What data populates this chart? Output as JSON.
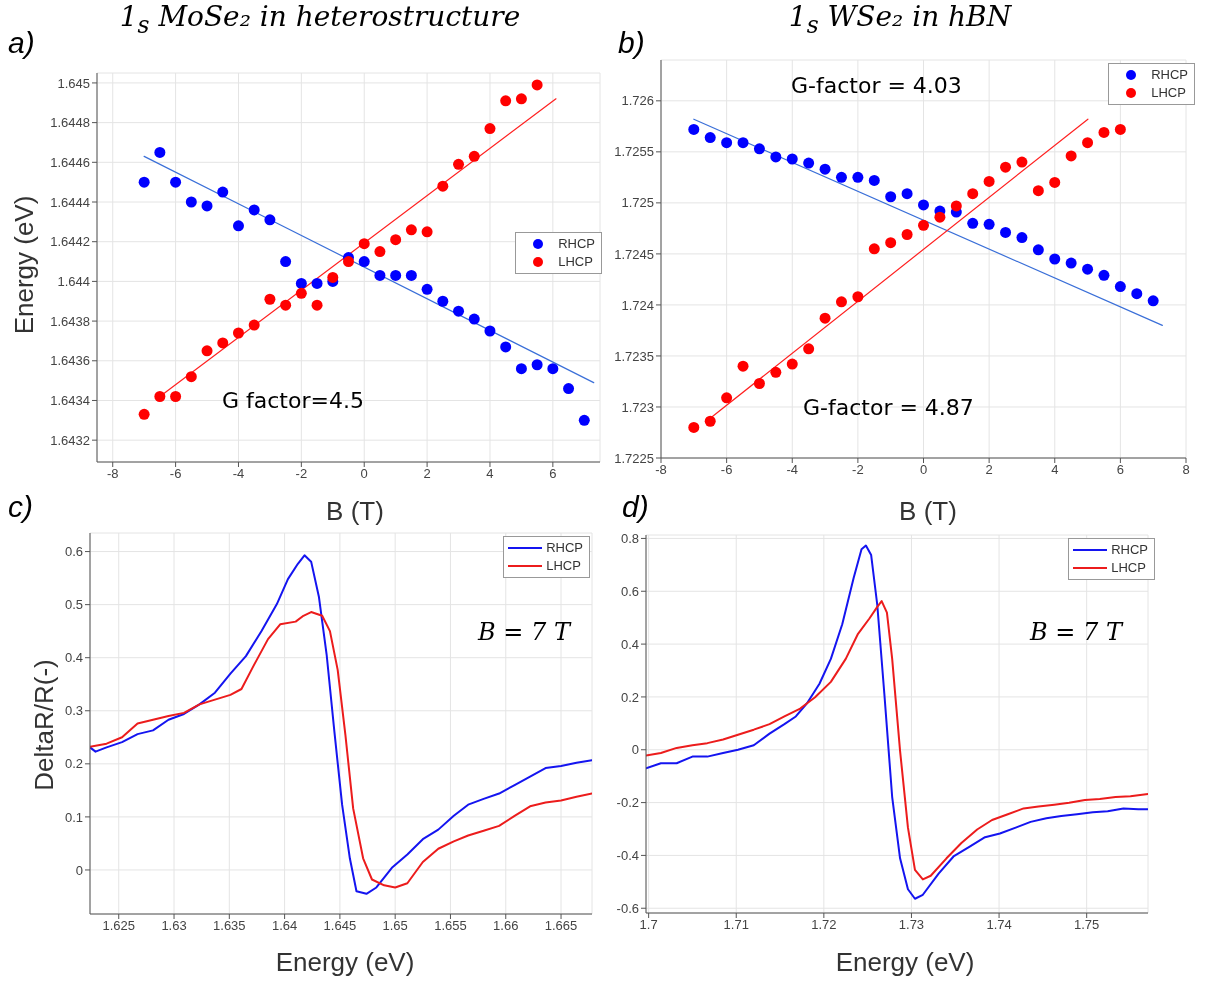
{
  "chart_data": [
    {
      "type": "scatter",
      "title": "1$_{s}$ MoSe₂ in heterostructure",
      "xlabel": "B (T)",
      "ylabel": "Energy (eV)",
      "annotations": [
        "a)",
        "G factor=4.5"
      ],
      "xlim": [
        -8.5,
        7.5
      ],
      "xticks": [
        -8,
        -6,
        -4,
        -2,
        0,
        2,
        4,
        6
      ],
      "ylim": [
        1.64309,
        1.64505
      ],
      "yticks": [
        1.6432,
        1.6434,
        1.6436,
        1.6438,
        1.644,
        1.6442,
        1.6444,
        1.6446,
        1.6448,
        1.645
      ],
      "grid": true,
      "legend": "right",
      "marker": "circle",
      "x": [
        -7,
        -6.5,
        -6,
        -5.5,
        -5,
        -4.5,
        -4,
        -3.5,
        -3,
        -2.5,
        -2,
        -1.5,
        -1,
        -0.5,
        0,
        0.5,
        1,
        1.5,
        2,
        2.5,
        3,
        3.5,
        4,
        4.5,
        5,
        5.5,
        6,
        6.5,
        7
      ],
      "series": [
        {
          "name": "RHCP",
          "color": "#0000ff",
          "values": [
            1.6445,
            1.64465,
            1.6445,
            1.6444,
            1.64438,
            1.64445,
            1.64428,
            1.64436,
            1.64431,
            1.6441,
            1.64399,
            1.64399,
            1.644,
            1.64412,
            1.6441,
            1.64403,
            1.64403,
            1.64403,
            1.64396,
            1.6439,
            1.64385,
            1.64381,
            1.64375,
            1.64367,
            1.64356,
            1.64358,
            1.64356,
            1.64346,
            1.6433
          ]
        },
        {
          "name": "LHCP",
          "color": "#ff0000",
          "x": [
            -7,
            -6.5,
            -6,
            -5.5,
            -5,
            -4.5,
            -4,
            -3.5,
            -3,
            -2.5,
            -2,
            -1.5,
            -1,
            -0.5,
            0,
            0.5,
            1,
            1.5,
            2,
            2.5,
            3,
            3.5,
            4,
            4.5,
            5,
            5.5
          ],
          "values": [
            1.64333,
            1.64342,
            1.64342,
            1.64352,
            1.64365,
            1.64369,
            1.64374,
            1.64378,
            1.64391,
            1.64388,
            1.64394,
            1.64388,
            1.64402,
            1.6441,
            1.64419,
            1.64415,
            1.64421,
            1.64426,
            1.64425,
            1.64448,
            1.64459,
            1.64463,
            1.64477,
            1.64491,
            1.64492,
            1.64499
          ]
        },
        {
          "type": "line",
          "marker": "none",
          "color": "#3a6fd8",
          "x": [
            -7,
            7.3
          ],
          "values": [
            1.64463,
            1.64349
          ]
        },
        {
          "type": "line",
          "marker": "none",
          "color": "#ff2020",
          "x": [
            -6.5,
            6.1
          ],
          "values": [
            1.64342,
            1.64492
          ]
        }
      ]
    },
    {
      "type": "scatter",
      "title": "1$_{s}$ WSe₂ in hBN",
      "xlabel": "B (T)",
      "annotations": [
        "b)",
        "G-factor = 4.03",
        "G-factor = 4.87"
      ],
      "xlim": [
        -8,
        8
      ],
      "xticks": [
        -8,
        -6,
        -4,
        -2,
        0,
        2,
        4,
        6,
        8
      ],
      "ylim": [
        1.7225,
        1.7264
      ],
      "yticks": [
        1.7225,
        1.723,
        1.7235,
        1.724,
        1.7245,
        1.725,
        1.7255,
        1.726
      ],
      "grid": true,
      "legend": "top right",
      "marker": "circle",
      "x": [
        -7,
        -6.5,
        -6,
        -5.5,
        -5,
        -4.5,
        -4,
        -3.5,
        -3,
        -2.5,
        -2,
        -1.5,
        -1,
        -0.5,
        0,
        0.5,
        1,
        1.5,
        2,
        2.5,
        3,
        3.5,
        4,
        4.5,
        5,
        5.5,
        6,
        6.5,
        7
      ],
      "series": [
        {
          "name": "RHCP",
          "color": "#0000ff",
          "values": [
            1.72572,
            1.72564,
            1.72559,
            1.72559,
            1.72553,
            1.72545,
            1.72543,
            1.72539,
            1.72533,
            1.72525,
            1.72525,
            1.72522,
            1.72506,
            1.72509,
            1.72498,
            1.72492,
            1.72491,
            1.7248,
            1.72479,
            1.72471,
            1.72466,
            1.72454,
            1.72445,
            1.72441,
            1.72435,
            1.72429,
            1.72418,
            1.72411,
            1.72404
          ]
        },
        {
          "name": "LHCP",
          "color": "#ff0000",
          "x": [
            -7,
            -6.5,
            -6,
            -5.5,
            -5,
            -4.5,
            -4,
            -3.5,
            -3,
            -2.5,
            -2,
            -1.5,
            -1,
            -0.5,
            0,
            0.5,
            1,
            1.5,
            2,
            2.5,
            3,
            3.5,
            4,
            4.5,
            5,
            5.5,
            6
          ],
          "values": [
            1.7228,
            1.72286,
            1.72309,
            1.7234,
            1.72323,
            1.72334,
            1.72342,
            1.72357,
            1.72387,
            1.72403,
            1.72408,
            1.72455,
            1.72461,
            1.72469,
            1.72478,
            1.72486,
            1.72497,
            1.72509,
            1.72521,
            1.72535,
            1.7254,
            1.72512,
            1.7252,
            1.72546,
            1.72559,
            1.72569,
            1.72572
          ]
        },
        {
          "type": "line",
          "marker": "none",
          "color": "#3a6fd8",
          "x": [
            -7,
            7.28
          ],
          "values": [
            1.72582,
            1.7238
          ]
        },
        {
          "type": "line",
          "marker": "none",
          "color": "#ff2020",
          "x": [
            -6.5,
            5.01
          ],
          "values": [
            1.72289,
            1.72582
          ]
        }
      ]
    },
    {
      "type": "line",
      "xlabel": "Energy (eV)",
      "ylabel": "DeltaR/R(-)",
      "annotations": [
        "c)",
        "B = 7 T"
      ],
      "xlim": [
        1.6224,
        1.6678
      ],
      "xticks": [
        1.625,
        1.63,
        1.635,
        1.64,
        1.645,
        1.65,
        1.655,
        1.66,
        1.665
      ],
      "ylim": [
        -0.083,
        0.635
      ],
      "yticks": [
        0,
        0.1,
        0.2,
        0.3,
        0.4,
        0.5,
        0.6
      ],
      "grid": true,
      "legend": "top right",
      "line_style": "solid",
      "series": [
        {
          "name": "RHCP",
          "color": "#1414f0",
          "x": [
            1.6224,
            1.6229,
            1.6239,
            1.6253,
            1.6267,
            1.6281,
            1.6295,
            1.6309,
            1.6323,
            1.6337,
            1.6351,
            1.6365,
            1.6379,
            1.6393,
            1.6403,
            1.6412,
            1.6418,
            1.6424,
            1.6431,
            1.6438,
            1.6445,
            1.6452,
            1.6459,
            1.6465,
            1.6474,
            1.6483,
            1.6497,
            1.6511,
            1.6525,
            1.6539,
            1.6553,
            1.6566,
            1.658,
            1.6594,
            1.6608,
            1.6622,
            1.6636,
            1.665,
            1.6664,
            1.6678
          ],
          "values": [
            0.231,
            0.223,
            0.231,
            0.241,
            0.256,
            0.263,
            0.283,
            0.294,
            0.312,
            0.334,
            0.37,
            0.403,
            0.45,
            0.501,
            0.548,
            0.577,
            0.593,
            0.581,
            0.515,
            0.406,
            0.261,
            0.123,
            0.022,
            -0.04,
            -0.045,
            -0.033,
            0.004,
            0.029,
            0.058,
            0.076,
            0.102,
            0.123,
            0.134,
            0.144,
            0.16,
            0.176,
            0.192,
            0.196,
            0.202,
            0.207
          ]
        },
        {
          "name": "LHCP",
          "color": "#ec1c1c",
          "x": [
            1.6224,
            1.6239,
            1.6253,
            1.6267,
            1.6281,
            1.6295,
            1.6309,
            1.6323,
            1.6337,
            1.6351,
            1.6361,
            1.6372,
            1.6385,
            1.6396,
            1.641,
            1.6417,
            1.6424,
            1.6434,
            1.6441,
            1.6448,
            1.6455,
            1.6462,
            1.6471,
            1.6479,
            1.649,
            1.65,
            1.6511,
            1.6525,
            1.6539,
            1.6553,
            1.6566,
            1.658,
            1.6594,
            1.6608,
            1.6622,
            1.6636,
            1.665,
            1.6664,
            1.6678
          ],
          "values": [
            0.232,
            0.238,
            0.25,
            0.276,
            0.283,
            0.29,
            0.296,
            0.312,
            0.321,
            0.33,
            0.341,
            0.385,
            0.435,
            0.463,
            0.468,
            0.479,
            0.486,
            0.479,
            0.45,
            0.377,
            0.254,
            0.116,
            0.022,
            -0.018,
            -0.029,
            -0.033,
            -0.025,
            0.015,
            0.04,
            0.054,
            0.065,
            0.074,
            0.083,
            0.102,
            0.12,
            0.127,
            0.131,
            0.138,
            0.144
          ]
        }
      ]
    },
    {
      "type": "line",
      "xlabel": "Energy (eV)",
      "annotations": [
        "d)",
        "B = 7 T"
      ],
      "xlim": [
        1.6997,
        1.757
      ],
      "xticks": [
        1.7,
        1.71,
        1.72,
        1.73,
        1.74,
        1.75
      ],
      "ylim": [
        -0.618,
        0.813
      ],
      "yticks": [
        -0.6,
        -0.4,
        -0.2,
        0,
        0.2,
        0.4,
        0.6,
        0.8
      ],
      "grid": true,
      "legend": "top right",
      "line_style": "solid",
      "series": [
        {
          "name": "RHCP",
          "color": "#1414f0",
          "x": [
            1.6997,
            1.7014,
            1.7032,
            1.705,
            1.7067,
            1.7085,
            1.7102,
            1.712,
            1.7138,
            1.7155,
            1.7168,
            1.7181,
            1.7195,
            1.7208,
            1.7221,
            1.7234,
            1.7243,
            1.7248,
            1.7254,
            1.7261,
            1.7269,
            1.7278,
            1.7287,
            1.7296,
            1.7304,
            1.7313,
            1.7331,
            1.7348,
            1.7366,
            1.7384,
            1.7401,
            1.7419,
            1.7436,
            1.7454,
            1.7471,
            1.7489,
            1.7507,
            1.7524,
            1.7542,
            1.7559,
            1.757
          ],
          "values": [
            -0.07,
            -0.051,
            -0.051,
            -0.026,
            -0.026,
            -0.012,
            0,
            0.017,
            0.061,
            0.097,
            0.126,
            0.177,
            0.25,
            0.344,
            0.475,
            0.65,
            0.759,
            0.773,
            0.737,
            0.548,
            0.214,
            -0.179,
            -0.411,
            -0.528,
            -0.564,
            -0.549,
            -0.469,
            -0.404,
            -0.368,
            -0.331,
            -0.317,
            -0.295,
            -0.273,
            -0.259,
            -0.251,
            -0.244,
            -0.237,
            -0.233,
            -0.222,
            -0.225,
            -0.225
          ]
        },
        {
          "name": "LHCP",
          "color": "#ec1c1c",
          "x": [
            1.6997,
            1.7014,
            1.7032,
            1.705,
            1.7067,
            1.7085,
            1.7102,
            1.712,
            1.7138,
            1.7155,
            1.7173,
            1.719,
            1.7208,
            1.7225,
            1.7239,
            1.7252,
            1.7261,
            1.7266,
            1.7272,
            1.7278,
            1.7287,
            1.7296,
            1.7304,
            1.7313,
            1.7322,
            1.734,
            1.7357,
            1.7375,
            1.7392,
            1.741,
            1.7428,
            1.7445,
            1.7463,
            1.748,
            1.7498,
            1.7515,
            1.7533,
            1.755,
            1.757
          ],
          "values": [
            -0.022,
            -0.012,
            0.007,
            0.017,
            0.025,
            0.039,
            0.057,
            0.076,
            0.097,
            0.126,
            0.156,
            0.199,
            0.257,
            0.344,
            0.439,
            0.497,
            0.541,
            0.563,
            0.519,
            0.344,
            -0.004,
            -0.295,
            -0.455,
            -0.491,
            -0.477,
            -0.411,
            -0.353,
            -0.302,
            -0.266,
            -0.244,
            -0.222,
            -0.215,
            -0.208,
            -0.201,
            -0.19,
            -0.186,
            -0.179,
            -0.176,
            -0.167
          ]
        }
      ]
    }
  ]
}
